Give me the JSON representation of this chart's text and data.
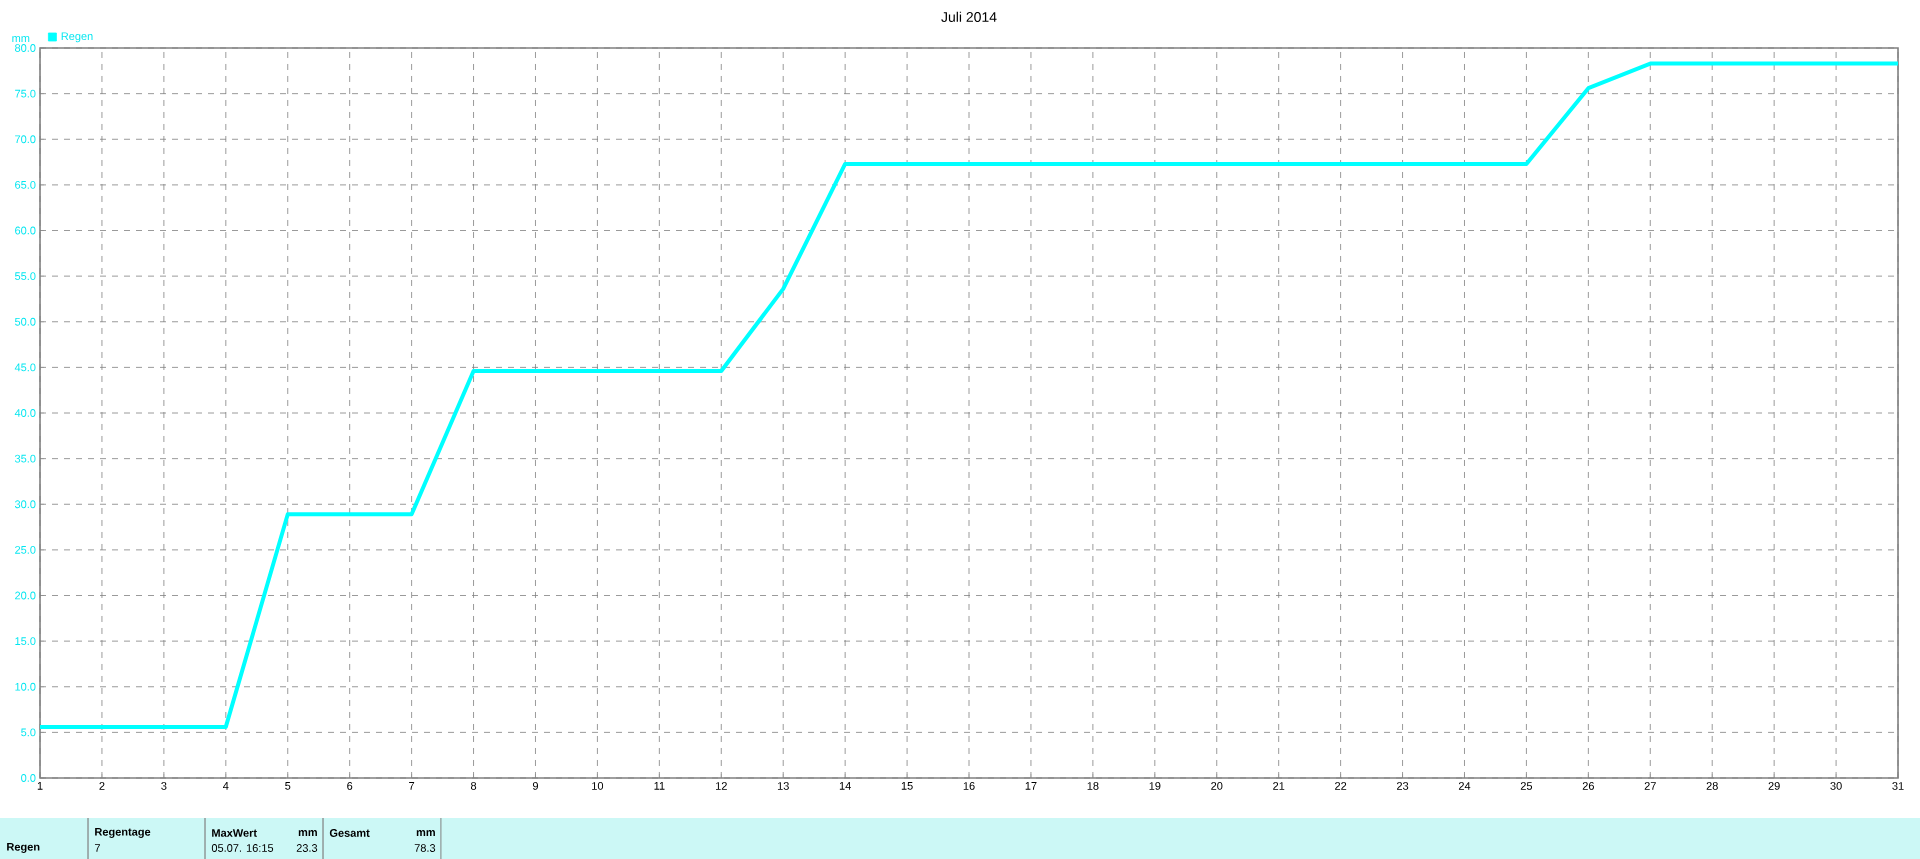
{
  "chart_data": {
    "type": "line",
    "title": "Juli 2014",
    "ylabel": "mm",
    "x": [
      1,
      2,
      3,
      4,
      5,
      6,
      7,
      8,
      9,
      10,
      11,
      12,
      13,
      14,
      15,
      16,
      17,
      18,
      19,
      20,
      21,
      22,
      23,
      24,
      25,
      26,
      27,
      28,
      29,
      30,
      31
    ],
    "series": [
      {
        "name": "Regen",
        "color": "#00ffff",
        "values": [
          5.6,
          5.6,
          5.6,
          5.6,
          28.9,
          28.9,
          28.9,
          44.6,
          44.6,
          44.6,
          44.6,
          44.6,
          53.6,
          67.3,
          67.3,
          67.3,
          67.3,
          67.3,
          67.3,
          67.3,
          67.3,
          67.3,
          67.3,
          67.3,
          67.3,
          75.6,
          78.3,
          78.3,
          78.3,
          78.3,
          78.3
        ]
      }
    ],
    "xlim": [
      1,
      31
    ],
    "ylim": [
      0,
      80
    ],
    "xticks": [
      1,
      2,
      3,
      4,
      5,
      6,
      7,
      8,
      9,
      10,
      11,
      12,
      13,
      14,
      15,
      16,
      17,
      18,
      19,
      20,
      21,
      22,
      23,
      24,
      25,
      26,
      27,
      28,
      29,
      30,
      31
    ],
    "yticks": [
      {
        "value": 0,
        "label": "0.0"
      },
      {
        "value": 5,
        "label": "5.0"
      },
      {
        "value": 10,
        "label": "10.0"
      },
      {
        "value": 15,
        "label": "15.0"
      },
      {
        "value": 20,
        "label": "20.0"
      },
      {
        "value": 25,
        "label": "25.0"
      },
      {
        "value": 30,
        "label": "30.0"
      },
      {
        "value": 35,
        "label": "35.0"
      },
      {
        "value": 40,
        "label": "40.0"
      },
      {
        "value": 45,
        "label": "45.0"
      },
      {
        "value": 50,
        "label": "50.0"
      },
      {
        "value": 55,
        "label": "55.0"
      },
      {
        "value": 60,
        "label": "60.0"
      },
      {
        "value": 65,
        "label": "65.0"
      },
      {
        "value": 70,
        "label": "70.0"
      },
      {
        "value": 75,
        "label": "75.0"
      },
      {
        "value": 80,
        "label": "80.0"
      }
    ],
    "grid": true,
    "legend": "top left",
    "marker": "none",
    "line_style": "solid",
    "annotations": [
      "Regen",
      "Regentage",
      "7",
      "MaxWert",
      "mm",
      "05.07.  16:15",
      "23.3",
      "Gesamt",
      "mm",
      "78.3"
    ]
  }
}
